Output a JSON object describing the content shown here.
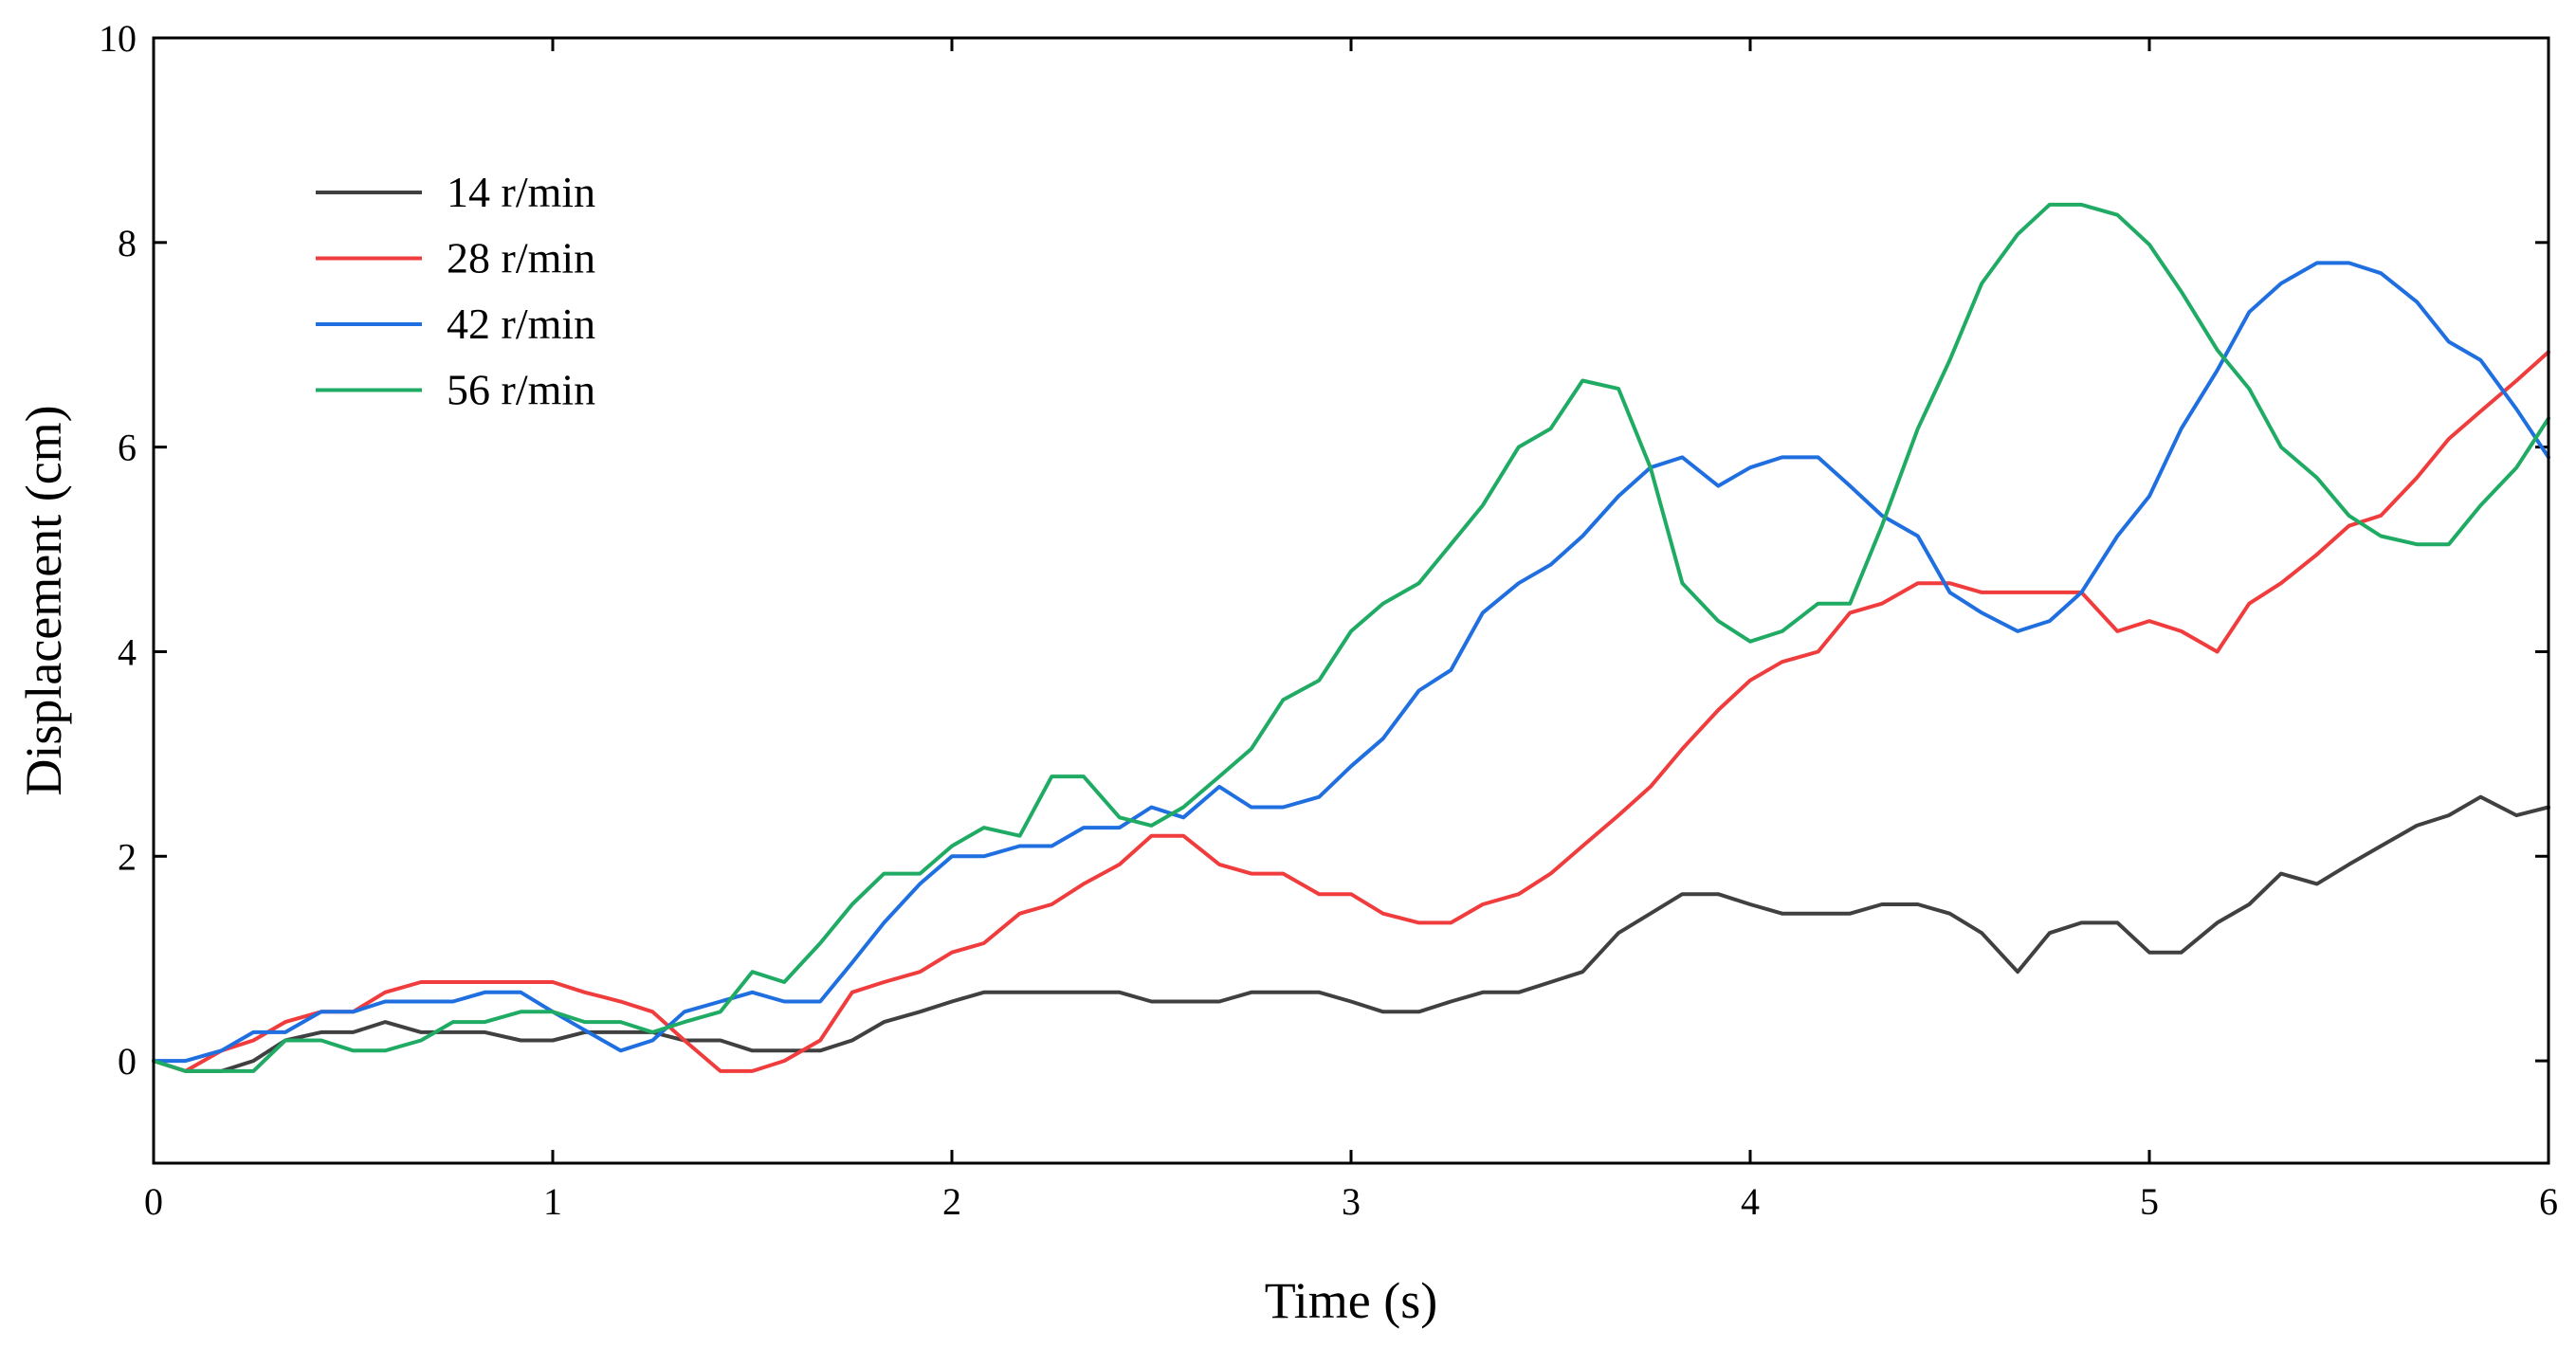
{
  "chart_data": {
    "type": "line",
    "xlabel": "Time (s)",
    "ylabel": "Displacement (cm)",
    "xlim": [
      0,
      6
    ],
    "ylim": [
      -1,
      10
    ],
    "xticks": [
      0,
      1,
      2,
      3,
      4,
      5,
      6
    ],
    "yticks": [
      0,
      2,
      4,
      6,
      8,
      10
    ],
    "grid": false,
    "legend_position": "upper-left",
    "series": [
      {
        "name": "14 r/min",
        "color": "#404040",
        "points": [
          [
            0,
            0
          ],
          [
            0.08,
            -0.1
          ],
          [
            0.17,
            -0.1
          ],
          [
            0.25,
            0
          ],
          [
            0.33,
            0.2
          ],
          [
            0.42,
            0.28
          ],
          [
            0.5,
            0.28
          ],
          [
            0.58,
            0.38
          ],
          [
            0.67,
            0.28
          ],
          [
            0.75,
            0.28
          ],
          [
            0.83,
            0.28
          ],
          [
            0.92,
            0.2
          ],
          [
            1.0,
            0.2
          ],
          [
            1.08,
            0.28
          ],
          [
            1.17,
            0.28
          ],
          [
            1.25,
            0.28
          ],
          [
            1.33,
            0.2
          ],
          [
            1.42,
            0.2
          ],
          [
            1.5,
            0.1
          ],
          [
            1.58,
            0.1
          ],
          [
            1.67,
            0.1
          ],
          [
            1.75,
            0.2
          ],
          [
            1.83,
            0.38
          ],
          [
            1.92,
            0.48
          ],
          [
            2.0,
            0.58
          ],
          [
            2.08,
            0.67
          ],
          [
            2.17,
            0.67
          ],
          [
            2.25,
            0.67
          ],
          [
            2.33,
            0.67
          ],
          [
            2.42,
            0.67
          ],
          [
            2.5,
            0.58
          ],
          [
            2.58,
            0.58
          ],
          [
            2.67,
            0.58
          ],
          [
            2.75,
            0.67
          ],
          [
            2.83,
            0.67
          ],
          [
            2.92,
            0.67
          ],
          [
            3.0,
            0.58
          ],
          [
            3.08,
            0.48
          ],
          [
            3.17,
            0.48
          ],
          [
            3.25,
            0.58
          ],
          [
            3.33,
            0.67
          ],
          [
            3.42,
            0.67
          ],
          [
            3.5,
            0.77
          ],
          [
            3.58,
            0.87
          ],
          [
            3.67,
            1.25
          ],
          [
            3.75,
            1.44
          ],
          [
            3.83,
            1.63
          ],
          [
            3.92,
            1.63
          ],
          [
            4.0,
            1.53
          ],
          [
            4.08,
            1.44
          ],
          [
            4.17,
            1.44
          ],
          [
            4.25,
            1.44
          ],
          [
            4.33,
            1.53
          ],
          [
            4.42,
            1.53
          ],
          [
            4.5,
            1.44
          ],
          [
            4.58,
            1.25
          ],
          [
            4.67,
            0.87
          ],
          [
            4.75,
            1.25
          ],
          [
            4.83,
            1.35
          ],
          [
            4.92,
            1.35
          ],
          [
            5.0,
            1.06
          ],
          [
            5.08,
            1.06
          ],
          [
            5.17,
            1.35
          ],
          [
            5.25,
            1.53
          ],
          [
            5.33,
            1.83
          ],
          [
            5.42,
            1.73
          ],
          [
            5.5,
            1.92
          ],
          [
            5.58,
            2.1
          ],
          [
            5.67,
            2.3
          ],
          [
            5.75,
            2.4
          ],
          [
            5.83,
            2.58
          ],
          [
            5.92,
            2.4
          ],
          [
            6.0,
            2.48
          ]
        ]
      },
      {
        "name": "28 r/min",
        "color": "#f03c3c",
        "points": [
          [
            0,
            0
          ],
          [
            0.08,
            -0.1
          ],
          [
            0.17,
            0.1
          ],
          [
            0.25,
            0.2
          ],
          [
            0.33,
            0.38
          ],
          [
            0.42,
            0.48
          ],
          [
            0.5,
            0.48
          ],
          [
            0.58,
            0.67
          ],
          [
            0.67,
            0.77
          ],
          [
            0.75,
            0.77
          ],
          [
            0.83,
            0.77
          ],
          [
            0.92,
            0.77
          ],
          [
            1.0,
            0.77
          ],
          [
            1.08,
            0.67
          ],
          [
            1.17,
            0.58
          ],
          [
            1.25,
            0.48
          ],
          [
            1.33,
            0.2
          ],
          [
            1.42,
            -0.1
          ],
          [
            1.5,
            -0.1
          ],
          [
            1.58,
            0
          ],
          [
            1.67,
            0.2
          ],
          [
            1.75,
            0.67
          ],
          [
            1.83,
            0.77
          ],
          [
            1.92,
            0.87
          ],
          [
            2.0,
            1.06
          ],
          [
            2.08,
            1.15
          ],
          [
            2.17,
            1.44
          ],
          [
            2.25,
            1.53
          ],
          [
            2.33,
            1.73
          ],
          [
            2.42,
            1.92
          ],
          [
            2.5,
            2.2
          ],
          [
            2.58,
            2.2
          ],
          [
            2.67,
            1.92
          ],
          [
            2.75,
            1.83
          ],
          [
            2.83,
            1.83
          ],
          [
            2.92,
            1.63
          ],
          [
            3.0,
            1.63
          ],
          [
            3.08,
            1.44
          ],
          [
            3.17,
            1.35
          ],
          [
            3.25,
            1.35
          ],
          [
            3.33,
            1.53
          ],
          [
            3.42,
            1.63
          ],
          [
            3.5,
            1.83
          ],
          [
            3.58,
            2.1
          ],
          [
            3.67,
            2.4
          ],
          [
            3.75,
            2.68
          ],
          [
            3.83,
            3.05
          ],
          [
            3.92,
            3.43
          ],
          [
            4.0,
            3.72
          ],
          [
            4.08,
            3.9
          ],
          [
            4.17,
            4.0
          ],
          [
            4.25,
            4.38
          ],
          [
            4.33,
            4.47
          ],
          [
            4.42,
            4.67
          ],
          [
            4.5,
            4.67
          ],
          [
            4.58,
            4.58
          ],
          [
            4.67,
            4.58
          ],
          [
            4.75,
            4.58
          ],
          [
            4.83,
            4.58
          ],
          [
            4.92,
            4.2
          ],
          [
            5.0,
            4.3
          ],
          [
            5.08,
            4.2
          ],
          [
            5.17,
            4.0
          ],
          [
            5.25,
            4.47
          ],
          [
            5.33,
            4.67
          ],
          [
            5.42,
            4.95
          ],
          [
            5.5,
            5.23
          ],
          [
            5.58,
            5.33
          ],
          [
            5.67,
            5.7
          ],
          [
            5.75,
            6.08
          ],
          [
            5.83,
            6.35
          ],
          [
            5.92,
            6.65
          ],
          [
            6.0,
            6.93
          ]
        ]
      },
      {
        "name": "42 r/min",
        "color": "#1f6fe0",
        "points": [
          [
            0,
            0
          ],
          [
            0.08,
            0
          ],
          [
            0.17,
            0.1
          ],
          [
            0.25,
            0.28
          ],
          [
            0.33,
            0.28
          ],
          [
            0.42,
            0.48
          ],
          [
            0.5,
            0.48
          ],
          [
            0.58,
            0.58
          ],
          [
            0.67,
            0.58
          ],
          [
            0.75,
            0.58
          ],
          [
            0.83,
            0.67
          ],
          [
            0.92,
            0.67
          ],
          [
            1.0,
            0.48
          ],
          [
            1.08,
            0.3
          ],
          [
            1.17,
            0.1
          ],
          [
            1.25,
            0.2
          ],
          [
            1.33,
            0.48
          ],
          [
            1.42,
            0.58
          ],
          [
            1.5,
            0.67
          ],
          [
            1.58,
            0.58
          ],
          [
            1.67,
            0.58
          ],
          [
            1.75,
            0.96
          ],
          [
            1.83,
            1.35
          ],
          [
            1.92,
            1.73
          ],
          [
            2.0,
            2.0
          ],
          [
            2.08,
            2.0
          ],
          [
            2.17,
            2.1
          ],
          [
            2.25,
            2.1
          ],
          [
            2.33,
            2.28
          ],
          [
            2.42,
            2.28
          ],
          [
            2.5,
            2.48
          ],
          [
            2.58,
            2.38
          ],
          [
            2.67,
            2.68
          ],
          [
            2.75,
            2.48
          ],
          [
            2.83,
            2.48
          ],
          [
            2.92,
            2.58
          ],
          [
            3.0,
            2.88
          ],
          [
            3.08,
            3.15
          ],
          [
            3.17,
            3.62
          ],
          [
            3.25,
            3.82
          ],
          [
            3.33,
            4.38
          ],
          [
            3.42,
            4.67
          ],
          [
            3.5,
            4.85
          ],
          [
            3.58,
            5.13
          ],
          [
            3.67,
            5.52
          ],
          [
            3.75,
            5.8
          ],
          [
            3.83,
            5.9
          ],
          [
            3.92,
            5.62
          ],
          [
            4.0,
            5.8
          ],
          [
            4.08,
            5.9
          ],
          [
            4.17,
            5.9
          ],
          [
            4.25,
            5.62
          ],
          [
            4.33,
            5.33
          ],
          [
            4.42,
            5.13
          ],
          [
            4.5,
            4.58
          ],
          [
            4.58,
            4.38
          ],
          [
            4.67,
            4.2
          ],
          [
            4.75,
            4.3
          ],
          [
            4.83,
            4.58
          ],
          [
            4.92,
            5.13
          ],
          [
            5.0,
            5.52
          ],
          [
            5.08,
            6.18
          ],
          [
            5.17,
            6.75
          ],
          [
            5.25,
            7.32
          ],
          [
            5.33,
            7.6
          ],
          [
            5.42,
            7.8
          ],
          [
            5.5,
            7.8
          ],
          [
            5.58,
            7.7
          ],
          [
            5.67,
            7.42
          ],
          [
            5.75,
            7.03
          ],
          [
            5.83,
            6.85
          ],
          [
            5.92,
            6.37
          ],
          [
            6.0,
            5.9
          ]
        ]
      },
      {
        "name": "56 r/min",
        "color": "#1fab63",
        "points": [
          [
            0,
            0
          ],
          [
            0.08,
            -0.1
          ],
          [
            0.17,
            -0.1
          ],
          [
            0.25,
            -0.1
          ],
          [
            0.33,
            0.2
          ],
          [
            0.42,
            0.2
          ],
          [
            0.5,
            0.1
          ],
          [
            0.58,
            0.1
          ],
          [
            0.67,
            0.2
          ],
          [
            0.75,
            0.38
          ],
          [
            0.83,
            0.38
          ],
          [
            0.92,
            0.48
          ],
          [
            1.0,
            0.48
          ],
          [
            1.08,
            0.38
          ],
          [
            1.17,
            0.38
          ],
          [
            1.25,
            0.28
          ],
          [
            1.33,
            0.38
          ],
          [
            1.42,
            0.48
          ],
          [
            1.5,
            0.87
          ],
          [
            1.58,
            0.77
          ],
          [
            1.67,
            1.15
          ],
          [
            1.75,
            1.53
          ],
          [
            1.83,
            1.83
          ],
          [
            1.92,
            1.83
          ],
          [
            2.0,
            2.1
          ],
          [
            2.08,
            2.28
          ],
          [
            2.17,
            2.2
          ],
          [
            2.25,
            2.78
          ],
          [
            2.33,
            2.78
          ],
          [
            2.42,
            2.38
          ],
          [
            2.5,
            2.3
          ],
          [
            2.58,
            2.48
          ],
          [
            2.67,
            2.78
          ],
          [
            2.75,
            3.05
          ],
          [
            2.83,
            3.53
          ],
          [
            2.92,
            3.72
          ],
          [
            3.0,
            4.2
          ],
          [
            3.08,
            4.47
          ],
          [
            3.17,
            4.67
          ],
          [
            3.25,
            5.05
          ],
          [
            3.33,
            5.43
          ],
          [
            3.42,
            6.0
          ],
          [
            3.5,
            6.18
          ],
          [
            3.58,
            6.65
          ],
          [
            3.67,
            6.57
          ],
          [
            3.75,
            5.8
          ],
          [
            3.83,
            4.67
          ],
          [
            3.92,
            4.3
          ],
          [
            4.0,
            4.1
          ],
          [
            4.08,
            4.2
          ],
          [
            4.17,
            4.47
          ],
          [
            4.25,
            4.47
          ],
          [
            4.33,
            5.23
          ],
          [
            4.42,
            6.18
          ],
          [
            4.5,
            6.85
          ],
          [
            4.58,
            7.6
          ],
          [
            4.67,
            8.08
          ],
          [
            4.75,
            8.37
          ],
          [
            4.83,
            8.37
          ],
          [
            4.92,
            8.27
          ],
          [
            5.0,
            7.98
          ],
          [
            5.08,
            7.52
          ],
          [
            5.17,
            6.95
          ],
          [
            5.25,
            6.57
          ],
          [
            5.33,
            6.0
          ],
          [
            5.42,
            5.7
          ],
          [
            5.5,
            5.33
          ],
          [
            5.58,
            5.13
          ],
          [
            5.67,
            5.05
          ],
          [
            5.75,
            5.05
          ],
          [
            5.83,
            5.43
          ],
          [
            5.92,
            5.8
          ],
          [
            6.0,
            6.28
          ]
        ]
      }
    ]
  }
}
